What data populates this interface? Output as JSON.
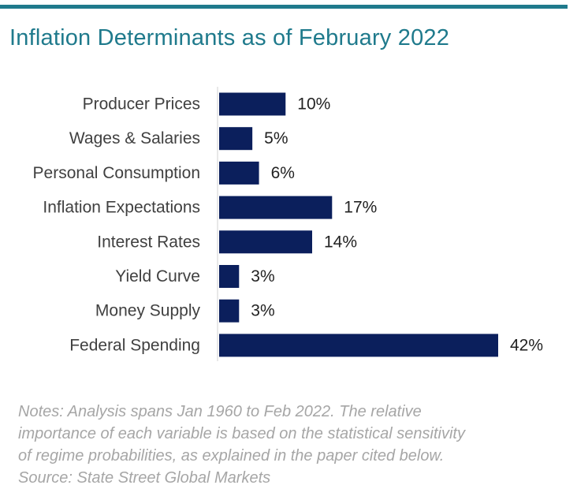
{
  "chart_data": {
    "type": "bar",
    "orientation": "horizontal",
    "title": "Inflation Determinants as of February 2022",
    "xlabel": "",
    "ylabel": "",
    "categories": [
      "Producer Prices",
      "Wages & Salaries",
      "Personal Consumption",
      "Inflation Expectations",
      "Interest Rates",
      "Yield Curve",
      "Money Supply",
      "Federal Spending"
    ],
    "values": [
      10,
      5,
      6,
      17,
      14,
      3,
      3,
      42
    ],
    "data_labels": [
      "10%",
      "5%",
      "6%",
      "17%",
      "14%",
      "3%",
      "3%",
      "42%"
    ],
    "xlim": [
      0,
      42
    ],
    "grid": false,
    "bar_color": "#0b1f5c"
  },
  "notes": {
    "lines": [
      "Notes: Analysis spans Jan 1960 to Feb 2022. The relative",
      "importance of each variable is based on the statistical sensitivity",
      "of regime probabilities, as explained in the paper cited below.",
      "Source: State Street Global Markets"
    ]
  },
  "colors": {
    "accent": "#1f7a8c",
    "bar": "#0b1f5c",
    "note_text": "#a6a6a6",
    "label_text": "#404040"
  }
}
